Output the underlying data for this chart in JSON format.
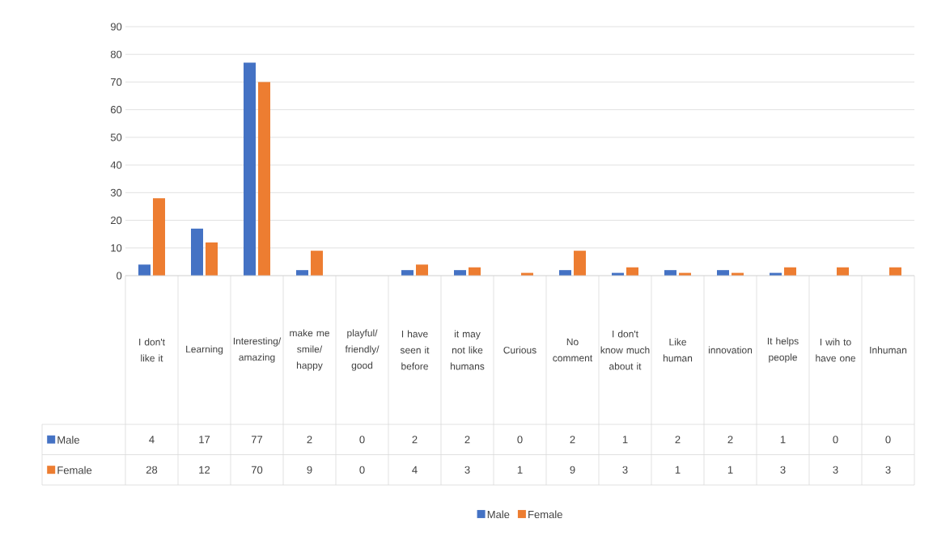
{
  "chart_data": {
    "type": "bar",
    "categories": [
      "I don't like it",
      "Learning",
      "Interesting/amazing",
      "make me smile/happy",
      "playful/friendly/good",
      "I have seen it before",
      "it may not like humans",
      "Curious",
      "No comment",
      "I don't know much about it",
      "Like human",
      "innovation",
      "It helps people",
      "I wih to have one",
      "Inhuman"
    ],
    "series": [
      {
        "name": "Male",
        "color": "#4472c4",
        "values": [
          4,
          17,
          77,
          2,
          0,
          2,
          2,
          0,
          2,
          1,
          2,
          2,
          1,
          0,
          0
        ]
      },
      {
        "name": "Female",
        "color": "#ed7d31",
        "values": [
          28,
          12,
          70,
          9,
          0,
          4,
          3,
          1,
          9,
          3,
          1,
          1,
          3,
          3,
          3
        ]
      }
    ],
    "ylim": [
      0,
      90
    ],
    "yticks": [
      0,
      10,
      20,
      30,
      40,
      50,
      60,
      70,
      80,
      90
    ],
    "grid": "y",
    "legend": "bottom",
    "data_labels": true
  }
}
